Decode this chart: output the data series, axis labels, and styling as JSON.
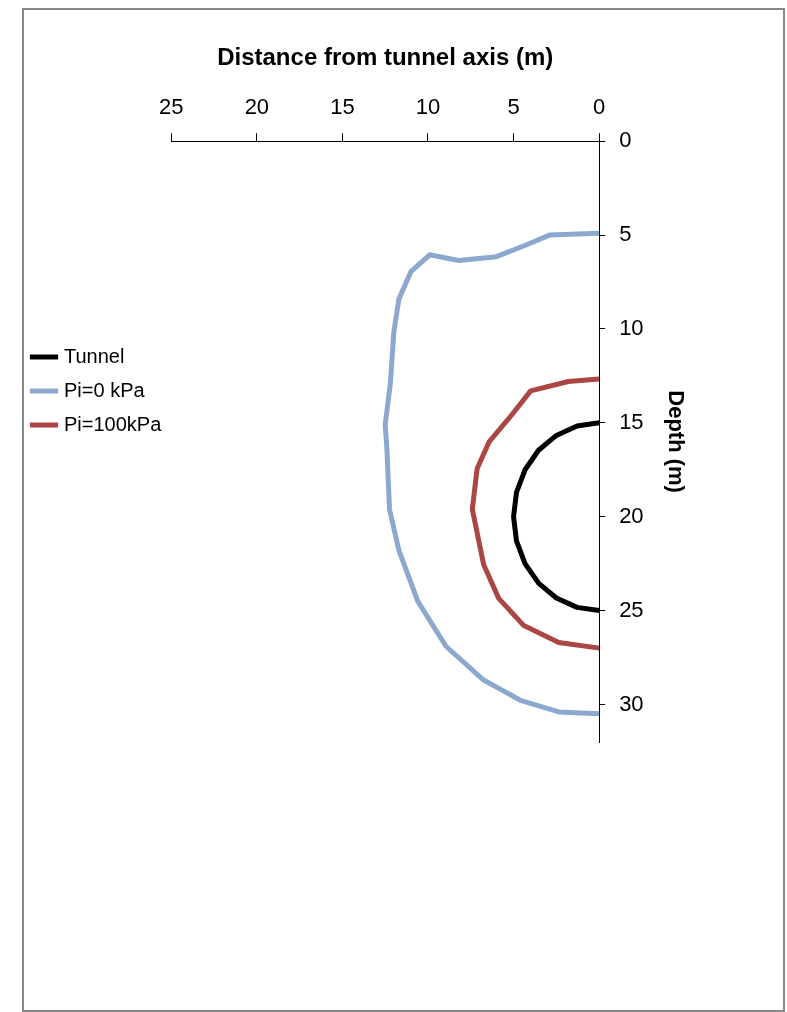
{
  "chart_data": {
    "type": "line",
    "xlabel": "Distance from tunnel axis (m)",
    "ylabel": "Depth (m)",
    "xlim": [
      25,
      0
    ],
    "xticks": [
      25,
      20,
      15,
      10,
      5,
      0
    ],
    "ylim": [
      32,
      0
    ],
    "yticks": [
      0,
      5,
      10,
      15,
      20,
      25,
      30
    ],
    "grid": false,
    "legend": "left",
    "marker": "none",
    "line_style": "solid",
    "series": [
      {
        "name": "Tunnel",
        "color": "#000000",
        "x": [
          0,
          1.29,
          2.5,
          3.54,
          4.33,
          4.83,
          5,
          4.83,
          4.33,
          3.54,
          2.5,
          1.29,
          0
        ],
        "values": [
          15,
          15.17,
          15.67,
          16.46,
          17.5,
          18.71,
          20,
          21.29,
          22.5,
          23.54,
          24.33,
          24.83,
          25
        ]
      },
      {
        "name": "Pi=0 kPa",
        "color": "#8da8cf",
        "x": [
          0,
          2.9,
          4.2,
          6,
          8.2,
          9.9,
          11,
          11.7,
          12,
          12.2,
          12.5,
          12.4,
          12.25,
          11.7,
          10.6,
          8.95,
          6.75,
          4.55,
          2.36,
          0
        ],
        "values": [
          4.9,
          5,
          5.5,
          6.15,
          6.35,
          6.05,
          6.95,
          8.4,
          10.2,
          12.9,
          15.1,
          16.4,
          19.6,
          21.8,
          24.5,
          26.9,
          28.7,
          29.8,
          30.4,
          30.5
        ]
      },
      {
        "name": "Pi=100kPa",
        "color": "#aa4643",
        "x": [
          0,
          1.8,
          4,
          5.1,
          6.42,
          7.13,
          7.41,
          6.75,
          5.87,
          4.4,
          2.36,
          0
        ],
        "values": [
          12.66,
          12.8,
          13.3,
          14.57,
          16,
          17.45,
          19.6,
          22.55,
          24.35,
          25.8,
          26.7,
          27
        ]
      }
    ]
  }
}
